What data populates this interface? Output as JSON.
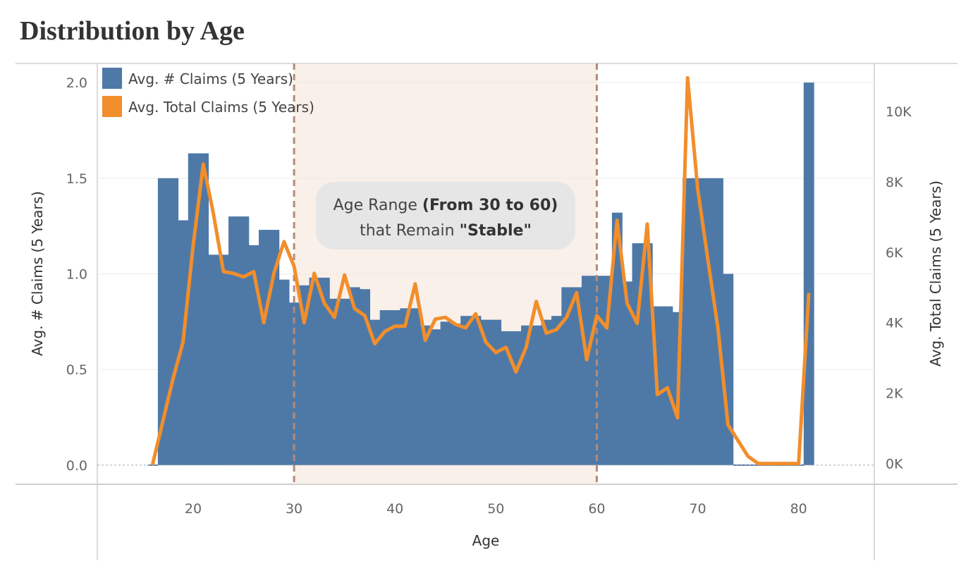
{
  "chart_data": {
    "type": "bar",
    "title": "Distribution by Age",
    "xlabel": "Age",
    "ylabel_left": "Avg. # Claims (5 Years)",
    "ylabel_right": "Avg. Total Claims (5 Years)",
    "xlim": [
      10.5,
      87.5
    ],
    "ylim_left": [
      -0.1,
      2.1
    ],
    "ylim_right": [
      -589,
      11360
    ],
    "x_ticks": [
      20,
      30,
      40,
      50,
      60,
      70,
      80
    ],
    "x_tick_labels": [
      "20",
      "30",
      "40",
      "50",
      "60",
      "70",
      "80"
    ],
    "y_left_ticks": [
      0,
      0.5,
      1.0,
      1.5,
      2.0
    ],
    "y_left_tick_labels": [
      "0.0",
      "0.5",
      "1.0",
      "1.5",
      "2.0"
    ],
    "y_right_ticks": [
      0,
      2000,
      4000,
      6000,
      8000,
      10000
    ],
    "y_right_tick_labels": [
      "0K",
      "2K",
      "4K",
      "6K",
      "8K",
      "10K"
    ],
    "legend_position": "top-left",
    "series": [
      {
        "name": "Avg. # Claims (5 Years)",
        "type": "bar",
        "axis": "left",
        "color": "#4e79a7",
        "x": [
          16,
          17,
          18,
          19,
          20,
          21,
          22,
          23,
          24,
          25,
          26,
          27,
          28,
          29,
          30,
          31,
          32,
          33,
          34,
          35,
          36,
          37,
          38,
          39,
          40,
          41,
          42,
          43,
          44,
          45,
          46,
          47,
          48,
          49,
          50,
          51,
          52,
          53,
          54,
          55,
          56,
          57,
          58,
          59,
          60,
          61,
          62,
          63,
          64,
          65,
          66,
          67,
          68,
          69,
          70,
          71,
          72,
          73,
          74,
          75,
          76,
          77,
          78,
          79,
          80,
          81
        ],
        "values": [
          0,
          1.5,
          1.5,
          1.28,
          1.63,
          1.63,
          1.1,
          1.1,
          1.3,
          1.3,
          1.15,
          1.23,
          1.23,
          0.97,
          0.85,
          0.94,
          0.98,
          0.98,
          0.87,
          0.87,
          0.93,
          0.92,
          0.76,
          0.81,
          0.81,
          0.82,
          0.82,
          0.73,
          0.71,
          0.75,
          0.74,
          0.78,
          0.78,
          0.76,
          0.76,
          0.7,
          0.7,
          0.73,
          0.73,
          0.76,
          0.78,
          0.93,
          0.93,
          0.99,
          0.99,
          0.99,
          1.32,
          0.96,
          1.16,
          1.16,
          0.83,
          0.83,
          0.8,
          1.5,
          1.5,
          1.5,
          1.5,
          1.0,
          0,
          0,
          0,
          0,
          0,
          0,
          0,
          2.0
        ]
      },
      {
        "name": "Avg. Total Claims (5 Years)",
        "type": "line",
        "axis": "right",
        "color": "#f28e2b",
        "x": [
          16,
          17,
          18,
          19,
          20,
          21,
          22,
          23,
          24,
          25,
          26,
          27,
          28,
          29,
          30,
          31,
          32,
          33,
          34,
          35,
          36,
          37,
          38,
          39,
          40,
          41,
          42,
          43,
          44,
          45,
          46,
          47,
          48,
          49,
          50,
          51,
          52,
          53,
          54,
          55,
          56,
          57,
          58,
          59,
          60,
          61,
          62,
          63,
          64,
          65,
          66,
          67,
          68,
          69,
          70,
          71,
          72,
          73,
          74,
          75,
          76,
          77,
          78,
          79,
          80,
          81
        ],
        "values": [
          0,
          1200,
          2400,
          3450,
          6200,
          8500,
          7100,
          5450,
          5400,
          5300,
          5450,
          4000,
          5400,
          6300,
          5600,
          4000,
          5400,
          4550,
          4150,
          5350,
          4400,
          4200,
          3400,
          3750,
          3900,
          3900,
          5100,
          3500,
          4100,
          4150,
          3950,
          3850,
          4250,
          3450,
          3150,
          3300,
          2600,
          3300,
          4600,
          3700,
          3800,
          4150,
          4850,
          2950,
          4200,
          3850,
          6900,
          4550,
          3980,
          6800,
          1960,
          2150,
          1300,
          10950,
          7800,
          5800,
          3850,
          1100,
          650,
          200,
          0,
          0,
          0,
          0,
          0,
          4800
        ]
      }
    ],
    "annotations": [
      {
        "type": "shaded-band",
        "from": 30,
        "to": 60,
        "color": "#f5e6dc"
      },
      {
        "type": "text-box",
        "line1_prefix": "Age Range ",
        "line1_bold": "(From 30 to 60)",
        "line2_prefix": "that Remain ",
        "line2_bold": "\"Stable\""
      }
    ]
  }
}
